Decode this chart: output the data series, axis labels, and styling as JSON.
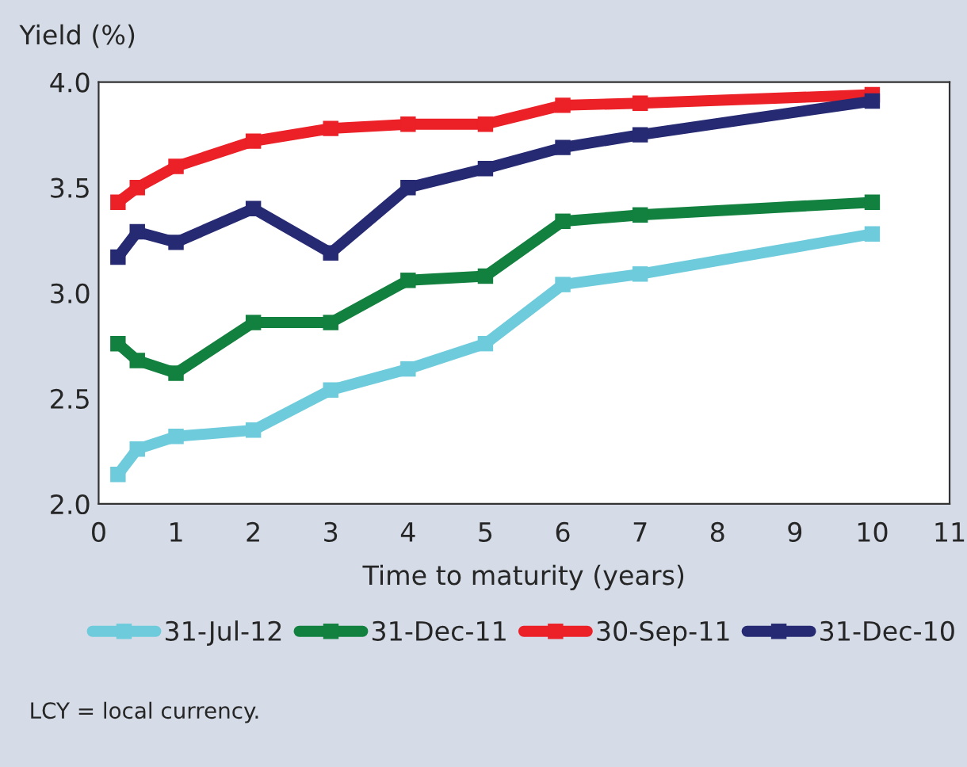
{
  "chart_data": {
    "type": "line",
    "ylabel": "Yield (%)",
    "xlabel": "Time to maturity (years)",
    "x": [
      0.25,
      0.5,
      1,
      2,
      3,
      4,
      5,
      6,
      7,
      10
    ],
    "series": [
      {
        "name": "31-Jul-12",
        "color": "#6ecbdc",
        "values": [
          2.14,
          2.26,
          2.32,
          2.35,
          2.54,
          2.64,
          2.76,
          3.04,
          3.09,
          3.28
        ]
      },
      {
        "name": "31-Dec-11",
        "color": "#12803e",
        "values": [
          2.76,
          2.68,
          2.62,
          2.86,
          2.86,
          3.06,
          3.08,
          3.34,
          3.37,
          3.43
        ]
      },
      {
        "name": "30-Sep-11",
        "color": "#ec2027",
        "values": [
          3.43,
          3.5,
          3.6,
          3.72,
          3.78,
          3.8,
          3.8,
          3.89,
          3.9,
          3.94
        ]
      },
      {
        "name": "31-Dec-10",
        "color": "#262a73",
        "values": [
          3.17,
          3.29,
          3.24,
          3.4,
          3.19,
          3.5,
          3.59,
          3.69,
          3.75,
          3.91
        ]
      }
    ],
    "xlim": [
      0,
      11
    ],
    "xticks": [
      0,
      1,
      2,
      3,
      4,
      5,
      6,
      7,
      8,
      9,
      10,
      11
    ],
    "ylim": [
      2.0,
      4.0
    ],
    "yticks": [
      {
        "value": 2.0,
        "label": "2.0"
      },
      {
        "value": 2.5,
        "label": "2.5"
      },
      {
        "value": 3.0,
        "label": "3.0"
      },
      {
        "value": 3.5,
        "label": "3.5"
      },
      {
        "value": 4.0,
        "label": "4.0"
      }
    ],
    "grid": false,
    "legend": "bottom",
    "marker": "square",
    "line_style": "solid",
    "annotations": [
      "LCY = local currency."
    ]
  }
}
